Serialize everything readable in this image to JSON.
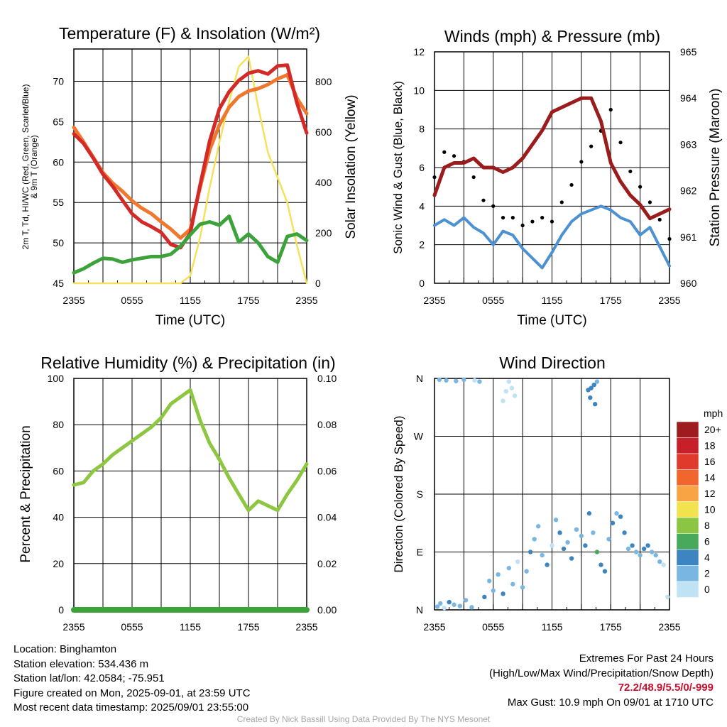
{
  "chart_data": [
    {
      "type": "line",
      "title": "Temperature (F) & Insolation (W/m²)",
      "xlabel": "Time (UTC)",
      "ylabel_lines": [
        "2m T, Td, HI/WC (Red, Green, Scarlet/Blue)",
        "& 9m T (Orange)"
      ],
      "y2label": "Solar Insolation (Yellow)",
      "x_ticks": [
        "2355",
        "0555",
        "1155",
        "1755",
        "2355"
      ],
      "ylim": [
        45,
        74
      ],
      "y_ticks": [
        45,
        50,
        55,
        60,
        65,
        70
      ],
      "y2lim": [
        0,
        930
      ],
      "y2_ticks": [
        0,
        200,
        400,
        600,
        800
      ],
      "x_hours": [
        0,
        1,
        2,
        3,
        4,
        5,
        6,
        7,
        8,
        9,
        10,
        11,
        12,
        13,
        14,
        15,
        16,
        17,
        18,
        19,
        20,
        21,
        22,
        23,
        24
      ],
      "series": [
        {
          "color": "#f7e05a",
          "axis": "y2",
          "values": [
            0,
            0,
            0,
            0,
            0,
            0,
            0,
            0,
            0,
            0,
            0,
            0,
            30,
            180,
            380,
            560,
            720,
            860,
            900,
            700,
            520,
            420,
            320,
            150,
            0
          ]
        },
        {
          "color": "#f0772e",
          "axis": "y",
          "values": [
            64.3,
            62.5,
            60.6,
            58.7,
            57.4,
            56.4,
            55.2,
            54.3,
            53.6,
            52.6,
            51.7,
            50.6,
            51.7,
            56.8,
            61.5,
            64.6,
            66.8,
            68.1,
            68.8,
            69.1,
            69.6,
            70.3,
            70.8,
            67.9,
            66.0
          ]
        },
        {
          "color": "#d32a27",
          "axis": "y",
          "values": [
            63.5,
            62.3,
            60.5,
            58.5,
            57.0,
            55.3,
            53.6,
            52.6,
            52.0,
            51.3,
            49.8,
            49.4,
            51.2,
            57.1,
            62.6,
            66.6,
            68.7,
            70.1,
            71.0,
            71.3,
            70.9,
            71.9,
            72.0,
            67.3,
            63.6
          ]
        },
        {
          "color": "#3ba33a",
          "axis": "y",
          "values": [
            46.3,
            46.8,
            47.5,
            48.1,
            48.0,
            47.6,
            47.9,
            48.1,
            48.3,
            48.3,
            48.6,
            49.6,
            51.0,
            52.3,
            52.6,
            52.2,
            53.3,
            50.1,
            51.1,
            50.0,
            48.3,
            47.6,
            50.8,
            51.1,
            50.3
          ]
        }
      ]
    },
    {
      "type": "scatter",
      "title": "Winds (mph) & Pressure (mb)",
      "xlabel": "Time (UTC)",
      "ylabel": "Sonic Wind & Gust (Blue, Black)",
      "y2label": "Station Pressure (Maroon)",
      "x_ticks": [
        "2355",
        "0555",
        "1155",
        "1755",
        "2355"
      ],
      "ylim": [
        0,
        12
      ],
      "y_ticks": [
        0,
        2,
        4,
        6,
        8,
        10,
        12
      ],
      "y2lim": [
        960,
        965
      ],
      "y2_ticks": [
        960,
        961,
        962,
        963,
        964,
        965
      ],
      "x_hours": [
        0,
        1,
        2,
        3,
        4,
        5,
        6,
        7,
        8,
        9,
        10,
        11,
        12,
        13,
        14,
        15,
        16,
        17,
        18,
        19,
        20,
        21,
        22,
        23,
        24
      ],
      "wind": {
        "color": "#4c91d2",
        "values": [
          3.0,
          3.3,
          3.0,
          3.4,
          2.9,
          2.6,
          2.0,
          2.7,
          2.5,
          1.8,
          1.3,
          0.8,
          1.6,
          2.5,
          3.2,
          3.6,
          3.8,
          4.0,
          3.8,
          3.4,
          3.2,
          2.5,
          2.9,
          1.9,
          0.9
        ]
      },
      "gust": {
        "color": "#000000",
        "values": [
          5.5,
          6.8,
          6.6,
          6.3,
          5.5,
          4.3,
          4.0,
          3.4,
          3.4,
          3.0,
          3.2,
          3.4,
          3.2,
          4.2,
          5.1,
          6.3,
          7.1,
          7.9,
          9.0,
          7.3,
          5.8,
          5.0,
          4.2,
          3.3,
          2.3
        ]
      },
      "pressure": {
        "color": "#9b1c1c",
        "values": [
          961.9,
          962.5,
          962.6,
          962.6,
          962.7,
          962.5,
          962.5,
          962.4,
          962.5,
          962.7,
          963.0,
          963.3,
          963.7,
          963.8,
          963.9,
          964.0,
          964.0,
          963.5,
          962.6,
          962.2,
          961.9,
          961.7,
          961.4,
          961.5,
          961.6
        ]
      }
    },
    {
      "type": "line",
      "title": "Relative Humidity (%) & Precipitation (in)",
      "ylabel": "Percent & Precipitation",
      "x_ticks": [
        "2355",
        "0555",
        "1155",
        "1755",
        "2355"
      ],
      "ylim": [
        0,
        100
      ],
      "y_ticks": [
        0,
        20,
        40,
        60,
        80,
        100
      ],
      "y2lim": [
        0,
        0.1
      ],
      "y2_ticks": [
        "0.00",
        "0.02",
        "0.04",
        "0.06",
        "0.08",
        "0.10"
      ],
      "x_hours": [
        0,
        1,
        2,
        3,
        4,
        5,
        6,
        7,
        8,
        9,
        10,
        11,
        12,
        13,
        14,
        15,
        16,
        17,
        18,
        19,
        20,
        21,
        22,
        23,
        24
      ],
      "series": [
        {
          "color": "#8dc63f",
          "values": [
            54,
            55,
            60,
            63,
            67,
            70,
            73,
            76,
            79,
            83,
            89,
            92,
            95,
            82,
            72,
            65,
            57,
            50,
            43,
            47,
            45,
            43,
            50,
            56,
            63
          ]
        },
        {
          "color": "#3ba33a",
          "values": [
            0,
            0,
            0,
            0,
            0,
            0,
            0,
            0,
            0,
            0,
            0,
            0,
            0,
            0,
            0,
            0,
            0,
            0,
            0,
            0,
            0,
            0,
            0,
            0,
            0
          ]
        }
      ]
    },
    {
      "type": "scatter",
      "title": "Wind Direction",
      "ylabel": "Direction (Colored By Speed)",
      "x_ticks": [
        "2355",
        "0555",
        "1155",
        "1755",
        "2355"
      ],
      "y_ticks": [
        "N",
        "E",
        "S",
        "W",
        "N"
      ],
      "ylim": [
        0,
        360
      ],
      "points_hours": [
        0.3,
        0.6,
        1.0,
        1.5,
        2.0,
        2.6,
        3.2,
        3.8,
        0.5,
        1.2,
        2.2,
        3.0,
        4.1,
        4.6,
        5.1,
        5.6,
        6.0,
        6.5,
        7.0,
        7.6,
        8.0,
        8.5,
        9.0,
        9.4,
        9.8,
        10.2,
        10.6,
        11.0,
        11.5,
        12.0,
        12.4,
        12.8,
        13.2,
        13.6,
        14.0,
        14.5,
        15.0,
        15.4,
        15.8,
        16.2,
        16.6,
        17.0,
        17.4,
        17.8,
        18.2,
        18.6,
        19.0,
        19.4,
        19.8,
        20.2,
        20.6,
        21.0,
        21.4,
        21.8,
        22.2,
        22.6,
        23.0,
        23.4,
        23.8,
        7.0,
        7.3,
        7.6,
        7.9,
        8.2,
        15.7,
        16.0,
        16.3,
        16.6,
        15.9,
        16.4
      ],
      "points_dir": [
        5,
        10,
        3,
        12,
        8,
        6,
        15,
        4,
        358,
        357,
        356,
        358,
        357,
        355,
        20,
        45,
        30,
        55,
        25,
        65,
        40,
        75,
        35,
        60,
        90,
        110,
        130,
        85,
        70,
        100,
        140,
        120,
        95,
        105,
        80,
        125,
        115,
        100,
        150,
        120,
        90,
        70,
        60,
        110,
        135,
        150,
        145,
        120,
        95,
        100,
        90,
        85,
        95,
        100,
        90,
        85,
        75,
        70,
        20,
        325,
        340,
        355,
        345,
        333,
        342,
        345,
        350,
        355,
        330,
        320
      ],
      "points_speed": [
        2,
        3,
        1,
        4,
        3,
        2,
        3,
        2,
        2,
        3,
        3,
        2,
        1,
        2,
        4,
        3,
        2,
        3,
        4,
        2,
        3,
        1,
        2,
        3,
        4,
        3,
        2,
        3,
        4,
        1,
        2,
        4,
        5,
        3,
        4,
        2,
        3,
        5,
        4,
        3,
        7,
        4,
        5,
        3,
        4,
        2,
        4,
        5,
        3,
        4,
        3,
        2,
        4,
        5,
        3,
        2,
        2,
        1,
        0,
        1,
        1,
        0,
        1,
        0,
        4,
        5,
        4,
        3,
        5,
        4
      ],
      "colorbar": {
        "title": "mph",
        "labels": [
          "20+",
          "18",
          "16",
          "14",
          "12",
          "10",
          "8",
          "6",
          "4",
          "2",
          "0"
        ],
        "colors": [
          "#9e1b1e",
          "#c8202a",
          "#e03a2c",
          "#f0662e",
          "#f8a445",
          "#f2e24e",
          "#8cc542",
          "#48a85b",
          "#3d85c1",
          "#79b6e2",
          "#bfe2f5"
        ]
      }
    }
  ],
  "info": {
    "location": "Location: Binghamton",
    "elevation": "Station elevation: 534.436 m",
    "latlon": "Station lat/lon: 42.0584; -75.951",
    "created": "Figure created on Mon, 2025-09-01, at 23:59 UTC",
    "recent": "Most recent data timestamp: 2025/09/01 23:55:00"
  },
  "extremes": {
    "heading": "Extremes For Past 24 Hours",
    "subheading": "(High/Low/Max Wind/Precipitation/Snow Depth)",
    "values": "72.2/48.9/5.5/0/-999",
    "gust": "Max Gust: 10.9 mph On 09/01 at 1710 UTC"
  },
  "credit": "Created By Nick Bassill Using Data Provided By The NYS Mesonet"
}
